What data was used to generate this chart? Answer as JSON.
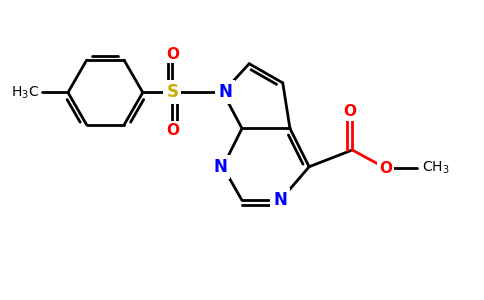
{
  "background_color": "#ffffff",
  "bond_color": "#000000",
  "N_color": "#0000ff",
  "O_color": "#ff0000",
  "S_color": "#ccaa00",
  "line_width": 2.0,
  "font_size_atom": 12,
  "font_size_label": 10,
  "xlim": [
    0,
    10
  ],
  "ylim": [
    0,
    6.2
  ]
}
